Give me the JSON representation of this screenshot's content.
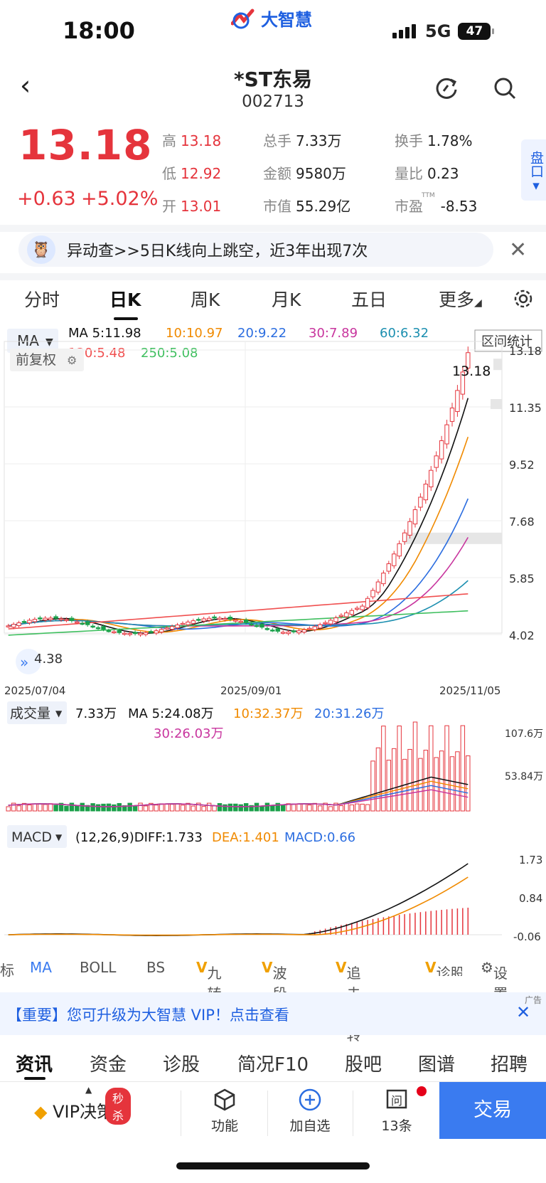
{
  "status_bar": {
    "time": "18:00",
    "network": "5G",
    "battery": "47",
    "app_logo": "大智慧"
  },
  "header": {
    "title": "*ST东易",
    "code": "002713"
  },
  "quote": {
    "price": "13.18",
    "change": "+0.63",
    "change_pct": "+5.02%",
    "high_label": "高",
    "high": "13.18",
    "low_label": "低",
    "low": "12.92",
    "open_label": "开",
    "open": "13.01",
    "volume_label": "总手",
    "volume": "7.33万",
    "amount_label": "金额",
    "amount": "9580万",
    "mktcap_label": "市值",
    "mktcap": "55.29亿",
    "turnover_label": "换手",
    "turnover": "1.78%",
    "volratio_label": "量比",
    "volratio": "0.23",
    "pe_label": "市盈",
    "pe_sup": "TTM",
    "pe": "-8.53",
    "pankou": "盘口"
  },
  "alert": {
    "text": "异动查>>5日K线向上跳空，近3年出现7次"
  },
  "period_tabs": [
    "分时",
    "日K",
    "周K",
    "月K",
    "五日",
    "更多"
  ],
  "active_tab": "日K",
  "ma_bar": {
    "selector": "MA",
    "ma5": "MA 5:11.98",
    "ma10": "10:10.97",
    "ma20": "20:9.22",
    "ma30": "30:7.89",
    "ma60": "60:6.32",
    "ma120": "120:5.48",
    "ma250": "250:5.08",
    "range_stat": "区间统计",
    "adjust": "前复权"
  },
  "colors": {
    "up": "#e5343c",
    "down": "#1aa04a",
    "ma5": "#111111",
    "ma10": "#f08a00",
    "ma20": "#2b6de0",
    "ma30": "#c8359e",
    "ma60": "#1c8fb0",
    "ma120": "#f05050",
    "ma250": "#3fbf5f"
  },
  "price_axis": [
    "13.18",
    "11.35",
    "9.52",
    "7.68",
    "5.85",
    "4.02"
  ],
  "price_marker": "13.18",
  "low_marker": "4.38",
  "dates": [
    "2025/07/04",
    "2025/09/01",
    "2025/11/05"
  ],
  "volume_bar": {
    "selector": "成交量",
    "vol": "7.33万",
    "ma5": "MA 5:24.08万",
    "ma10": "10:32.37万",
    "ma20": "20:31.26万",
    "ma30": "30:26.03万",
    "axis_top": "107.6万",
    "axis_mid": "53.84万"
  },
  "macd_bar": {
    "selector": "MACD",
    "params": "(12,26,9)DIFF:1.733",
    "dea": "DEA:1.401",
    "macd": "MACD:0.66",
    "axis": [
      "1.73",
      "0.84",
      "-0.06"
    ]
  },
  "indicator_tabs": [
    "标",
    "MA",
    "BOLL",
    "BS",
    "九转",
    "波段王",
    "追击反转",
    "诊股",
    "设置"
  ],
  "vip_banner": {
    "text": "【重要】您可升级为大智慧 VIP！点击查看",
    "ad": "广告"
  },
  "news_tabs": [
    "资讯",
    "资金",
    "诊股",
    "简况F10",
    "股吧",
    "图谱",
    "招聘"
  ],
  "bottom": {
    "vip": "VIP决策",
    "badge": "秒杀",
    "func": "功能",
    "add": "加自选",
    "count": "13条",
    "trade": "交易"
  }
}
